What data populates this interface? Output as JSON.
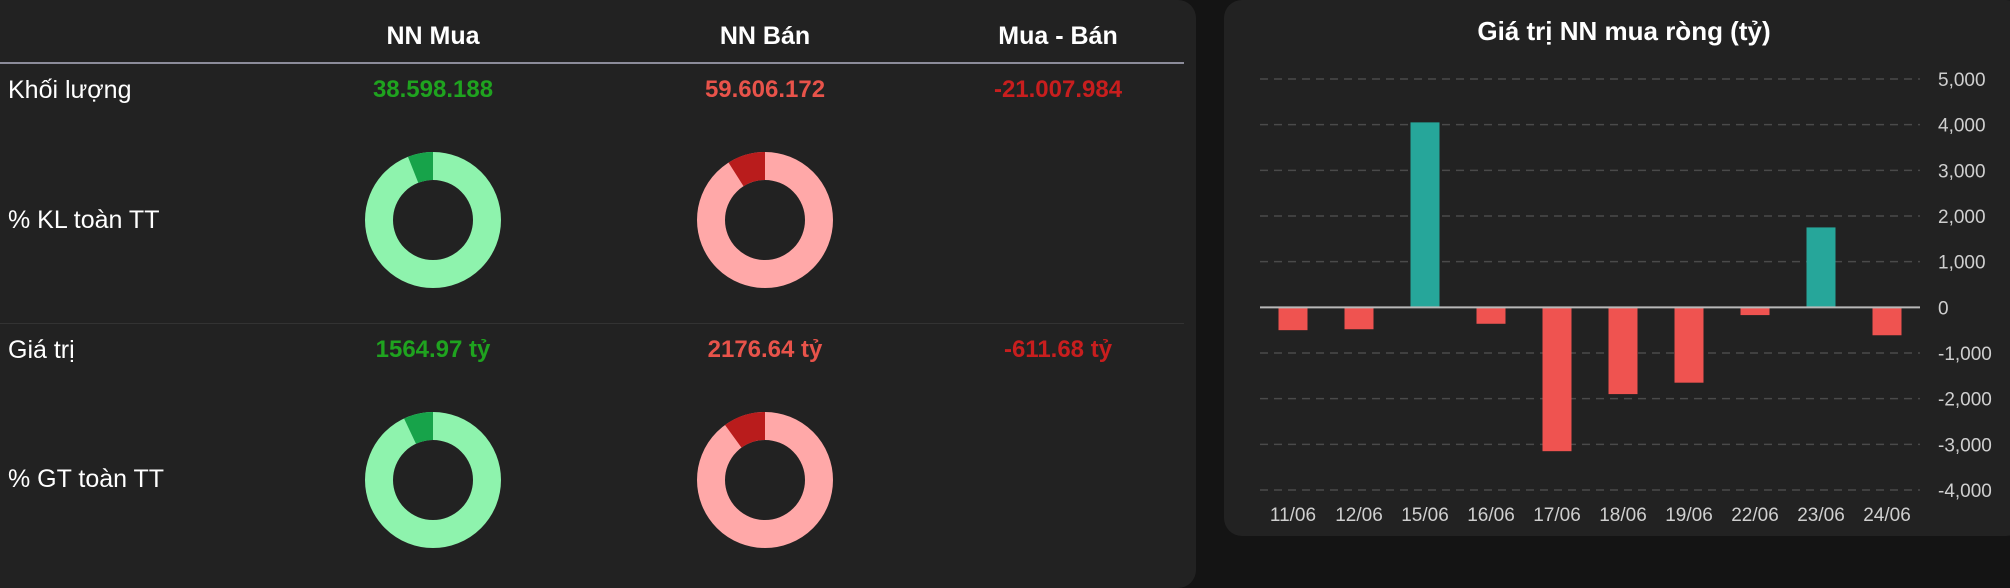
{
  "table": {
    "headers": [
      "NN Mua",
      "NN Bán",
      "Mua - Bán"
    ],
    "rows": {
      "khoi_luong": {
        "label": "Khối lượng",
        "buy": "38.598.188",
        "sell": "59.606.172",
        "net": "-21.007.984"
      },
      "kl_pct_label": "% KL toàn TT",
      "gia_tri": {
        "label": "Giá trị",
        "buy": "1564.97 tỷ",
        "sell": "2176.64 tỷ",
        "net": "-611.68 tỷ"
      },
      "gt_pct_label": "% GT toàn TT"
    },
    "donuts": {
      "kl_buy_pct": 6,
      "kl_sell_pct": 9,
      "gt_buy_pct": 7,
      "gt_sell_pct": 10
    }
  },
  "colors": {
    "buy_light": "#8ef3ad",
    "buy_dark": "#17a34a",
    "sell_light": "#ffa8a8",
    "sell_dark": "#b91c1c",
    "bar_pos": "#26a69a",
    "bar_neg": "#ef5350"
  },
  "chart_data": {
    "type": "bar",
    "title": "Giá trị NN mua ròng (tỷ)",
    "categories": [
      "11/06",
      "12/06",
      "15/06",
      "16/06",
      "17/06",
      "18/06",
      "19/06",
      "22/06",
      "23/06",
      "24/06"
    ],
    "values": [
      -500,
      -480,
      4050,
      -360,
      -3150,
      -1900,
      -1650,
      -170,
      1750,
      -611.68
    ],
    "ylim": [
      -4000,
      5000
    ],
    "yticks": [
      5000,
      4000,
      3000,
      2000,
      1000,
      0,
      -1000,
      -2000,
      -3000,
      -4000
    ],
    "ytick_labels": [
      "5,000",
      "4,000",
      "3,000",
      "2,000",
      "1,000",
      "0",
      "-1,000",
      "-2,000",
      "-3,000",
      "-4,000"
    ],
    "grid": true,
    "y_axis_side": "right"
  }
}
